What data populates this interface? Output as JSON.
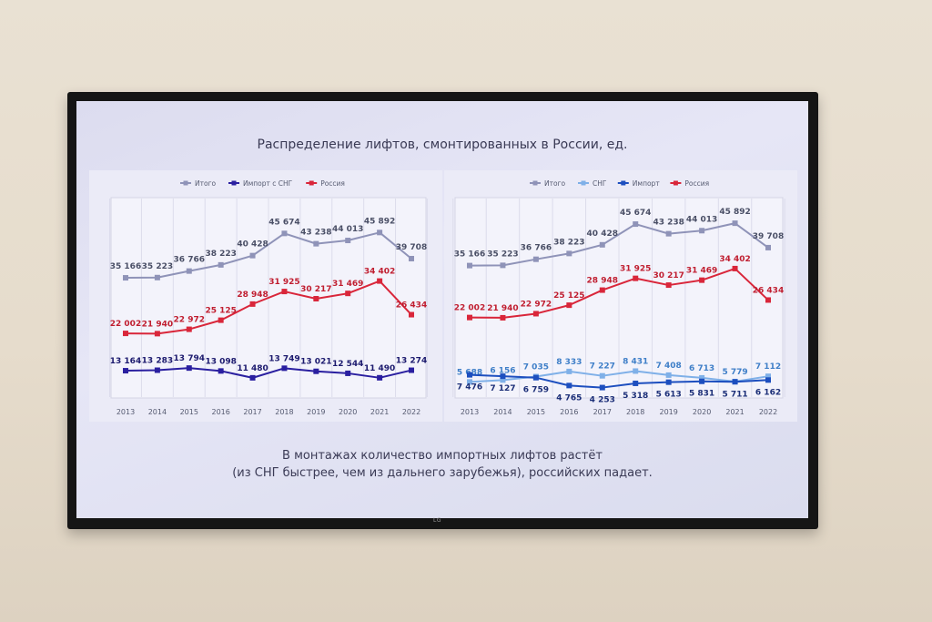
{
  "title": "Распределение лифтов, смонтированных в России, ед.",
  "caption_line1": "В монтажах количество импортных лифтов растёт",
  "caption_line2": "(из СНГ быстрее, чем из дальнего зарубежья), российских падает.",
  "logo": "LG",
  "chart_data": [
    {
      "type": "line",
      "categories": [
        "2013",
        "2014",
        "2015",
        "2016",
        "2017",
        "2018",
        "2019",
        "2020",
        "2021",
        "2022"
      ],
      "ylim": [
        8000,
        52000
      ],
      "series": [
        {
          "name": "Итого",
          "color": "#8f93b8",
          "values": [
            35166,
            35223,
            36766,
            38223,
            40428,
            45674,
            43238,
            44013,
            45892,
            39708
          ],
          "labels": [
            "35 166",
            "35 223",
            "36 766",
            "38 223",
            "40 428",
            "45 674",
            "43 238",
            "44 013",
            "45 892",
            "39 708"
          ],
          "label_color": "#4a4f66"
        },
        {
          "name": "Импорт с СНГ",
          "color": "#2a1fa0",
          "values": [
            13164,
            13283,
            13794,
            13098,
            11480,
            13749,
            13021,
            12544,
            11490,
            13274
          ],
          "labels": [
            "13 164",
            "13 283",
            "13 794",
            "13 098",
            "11 480",
            "13 749",
            "13 021",
            "12 544",
            "11 490",
            "13 274"
          ],
          "label_color": "#1c1a6e"
        },
        {
          "name": "Россия",
          "color": "#d9263a",
          "values": [
            22002,
            21940,
            22972,
            25125,
            28948,
            31925,
            30217,
            31469,
            34402,
            26434
          ],
          "labels": [
            "22 002",
            "21 940",
            "22 972",
            "25 125",
            "28 948",
            "31 925",
            "30 217",
            "31 469",
            "34 402",
            "26 434"
          ],
          "label_color": "#c01e30"
        }
      ]
    },
    {
      "type": "line",
      "categories": [
        "2013",
        "2014",
        "2015",
        "2016",
        "2017",
        "2018",
        "2019",
        "2020",
        "2021",
        "2022"
      ],
      "ylim": [
        3000,
        51000
      ],
      "series": [
        {
          "name": "Итого",
          "color": "#8f93b8",
          "values": [
            35166,
            35223,
            36766,
            38223,
            40428,
            45674,
            43238,
            44013,
            45892,
            39708
          ],
          "labels": [
            "35 166",
            "35 223",
            "36 766",
            "38 223",
            "40 428",
            "45 674",
            "43 238",
            "44 013",
            "45 892",
            "39 708"
          ],
          "label_color": "#4a4f66"
        },
        {
          "name": "СНГ",
          "color": "#7fb0e8",
          "values": [
            5688,
            6156,
            7035,
            8333,
            7227,
            8431,
            7408,
            6713,
            5779,
            7112
          ],
          "labels": [
            "5 688",
            "6 156",
            "7 035",
            "8 333",
            "7 227",
            "8 431",
            "7 408",
            "6 713",
            "5 779",
            "7 112"
          ],
          "label_color": "#3f7fc8"
        },
        {
          "name": "Импорт",
          "color": "#1d4fbf",
          "values": [
            7476,
            7127,
            6759,
            4765,
            4253,
            5318,
            5613,
            5831,
            5711,
            6162
          ],
          "labels": [
            "7 476",
            "7 127",
            "6 759",
            "4 765",
            "4 253",
            "5 318",
            "5 613",
            "5 831",
            "5 711",
            "6 162"
          ],
          "label_color": "#1c2f78"
        },
        {
          "name": "Россия",
          "color": "#d9263a",
          "values": [
            22002,
            21940,
            22972,
            25125,
            28948,
            31925,
            30217,
            31469,
            34402,
            26434
          ],
          "labels": [
            "22 002",
            "21 940",
            "22 972",
            "25 125",
            "28 948",
            "31 925",
            "30 217",
            "31 469",
            "34 402",
            "26 434"
          ],
          "label_color": "#c01e30"
        }
      ]
    }
  ]
}
